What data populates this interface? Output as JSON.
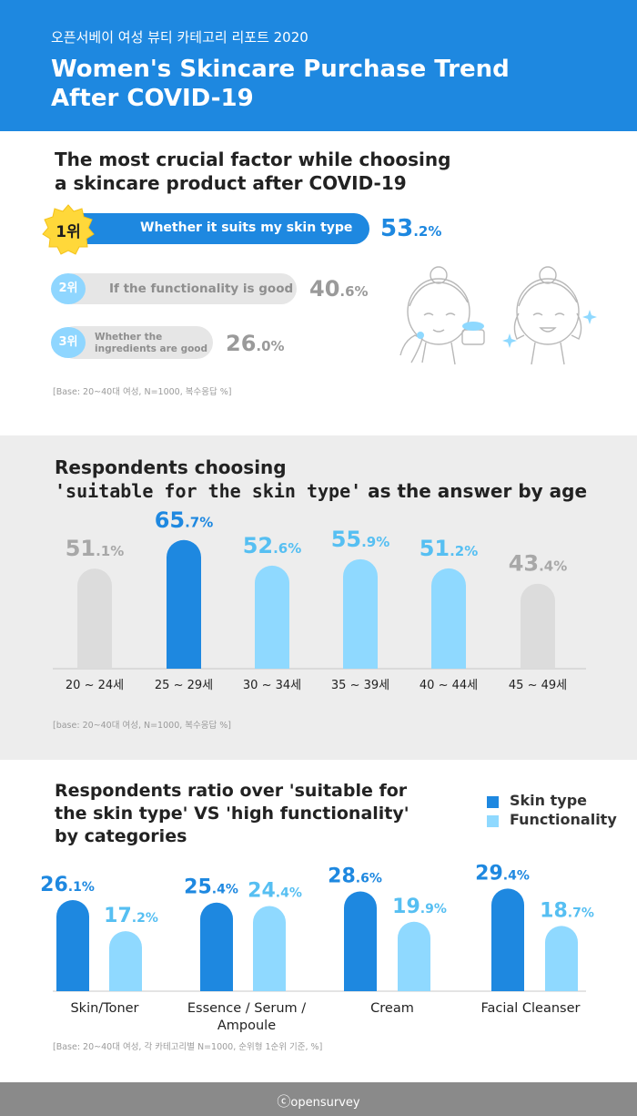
{
  "header": {
    "subtitle": "오픈서베이 여성 뷰티 카테고리 리포트 2020",
    "title_line1": "Women's Skincare Purchase Trend",
    "title_line2": "After COVID-19"
  },
  "section1": {
    "title_line1": "The most crucial factor while choosing",
    "title_line2": "a skincare product after COVID-19",
    "base_note": "[Base: 20~40대 여성, N=1000, 복수응답 %]"
  },
  "section2": {
    "title_line1": "Respondents choosing",
    "title_line2_highlight": "'suitable for the skin type'",
    "title_line2_rest": " as the answer by age",
    "base_note": "[base: 20~40대 여성, N=1000, 복수응답 %]"
  },
  "section3": {
    "title_line1": "Respondents ratio over 'suitable for",
    "title_line2": "the skin type' VS 'high functionality'",
    "title_line3": "by categories",
    "base_note": "[Base: 20~40대 여성, 각 카테고리별 N=1000, 순위형 1순위 기준, %]"
  },
  "footer": {
    "brand": "opensurvey"
  },
  "colors": {
    "primary": "#1e88e0",
    "light": "#8fd9ff",
    "gray": "#dcdcdc",
    "gray_text": "#a8a8a8"
  },
  "chart_data": [
    {
      "type": "bar",
      "orientation": "horizontal",
      "title": "The most crucial factor while choosing a skincare product after COVID-19",
      "categories": [
        "Whether it suits my skin type",
        "If the functionality is good",
        "Whether the ingredients are good"
      ],
      "ranks": [
        "1위",
        "2위",
        "3위"
      ],
      "values": [
        53.2,
        40.6,
        26.0
      ],
      "value_labels": [
        [
          "53",
          ".2%"
        ],
        [
          "40",
          ".6%"
        ],
        [
          "26",
          ".0%"
        ]
      ],
      "category_lines": [
        [
          "Whether it suits my skin type"
        ],
        [
          "If the functionality is good"
        ],
        [
          "Whether the",
          "ingredients are good"
        ]
      ]
    },
    {
      "type": "bar",
      "title": "Respondents choosing 'suitable for the skin type' as the answer by age",
      "categories": [
        "20 ~ 24세",
        "25 ~ 29세",
        "30 ~ 34세",
        "35 ~ 39세",
        "40 ~ 44세",
        "45 ~ 49세"
      ],
      "values": [
        51.1,
        65.7,
        52.6,
        55.9,
        51.2,
        43.4
      ],
      "value_labels": [
        [
          "51",
          ".1%"
        ],
        [
          "65",
          ".7%"
        ],
        [
          "52",
          ".6%"
        ],
        [
          "55",
          ".9%"
        ],
        [
          "51",
          ".2%"
        ],
        [
          "43",
          ".4%"
        ]
      ],
      "bar_colors": [
        "#dcdcdc",
        "#1e88e0",
        "#8fd9ff",
        "#8fd9ff",
        "#8fd9ff",
        "#dcdcdc"
      ],
      "label_colors": [
        "#a8a8a8",
        "#1e88e0",
        "#56bff2",
        "#56bff2",
        "#56bff2",
        "#a8a8a8"
      ]
    },
    {
      "type": "bar",
      "title": "Respondents ratio over 'suitable for the skin type' VS 'high functionality' by categories",
      "categories": [
        "Skin/Toner",
        "Essence / Serum / Ampoule",
        "Cream",
        "Facial Cleanser"
      ],
      "category_lines": [
        [
          "Skin/Toner"
        ],
        [
          "Essence / Serum /",
          "Ampoule"
        ],
        [
          "Cream"
        ],
        [
          "Facial Cleanser"
        ]
      ],
      "series": [
        {
          "name": "Skin type",
          "values": [
            26.1,
            25.4,
            28.6,
            29.4
          ],
          "labels": [
            [
              "26",
              ".1%"
            ],
            [
              "25",
              ".4%"
            ],
            [
              "28",
              ".6%"
            ],
            [
              "29",
              ".4%"
            ]
          ]
        },
        {
          "name": "Functionality",
          "values": [
            17.2,
            24.4,
            19.9,
            18.7
          ],
          "labels": [
            [
              "17",
              ".2%"
            ],
            [
              "24",
              ".4%"
            ],
            [
              "19",
              ".9%"
            ],
            [
              "18",
              ".7%"
            ]
          ]
        }
      ],
      "legend": "top-right"
    }
  ]
}
